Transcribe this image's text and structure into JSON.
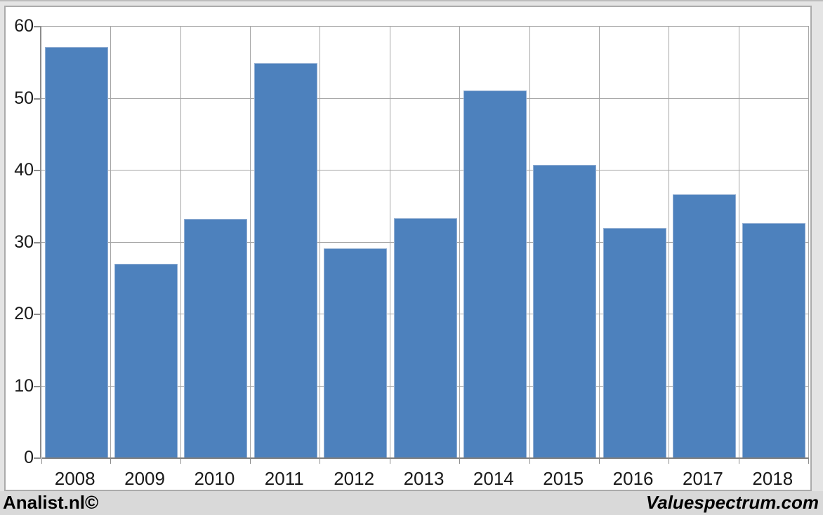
{
  "chart_data": {
    "type": "bar",
    "title": "",
    "categories": [
      "2008",
      "2009",
      "2010",
      "2011",
      "2012",
      "2013",
      "2014",
      "2015",
      "2016",
      "2017",
      "2018"
    ],
    "values": [
      57.1,
      26.9,
      33.2,
      54.8,
      29.1,
      33.3,
      51.0,
      40.7,
      31.9,
      36.6,
      32.6
    ],
    "xlabel": "",
    "ylabel": "",
    "ylim": [
      0,
      60
    ],
    "yticks": [
      0,
      10,
      20,
      30,
      40,
      50,
      60
    ],
    "grid": true,
    "legend": false,
    "colors": {
      "bar_fill": "#4d81bd",
      "bar_border": "#93afd3",
      "gridline": "#a6a6a6",
      "axis_line": "#8c8c8c",
      "label_text": "#1a1a1a"
    }
  },
  "footer": {
    "left_text": "Analist.nl©",
    "right_text": "Valuespectrum.com"
  }
}
